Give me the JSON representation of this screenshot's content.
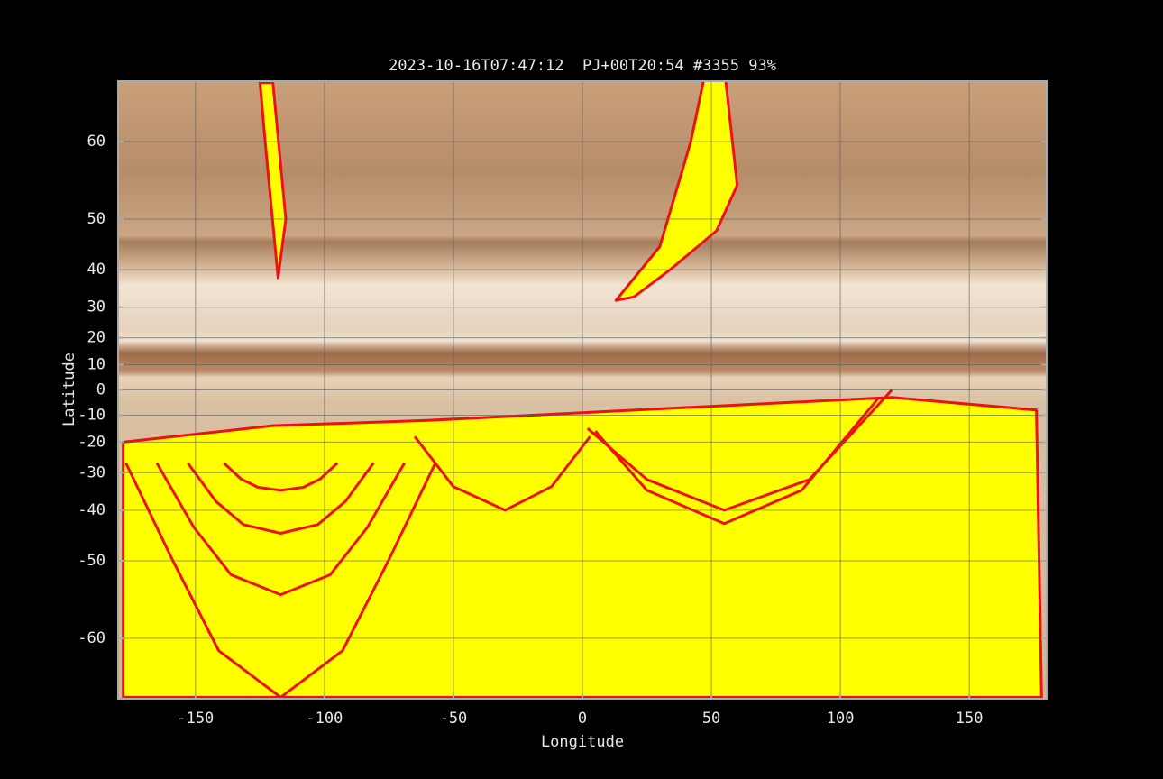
{
  "chart_data": {
    "type": "map",
    "title": "2023-10-16T07:47:12  PJ+00T20:54 #3355 93%",
    "x_label": "Longitude",
    "y_label": "Latitude",
    "xlim": [
      -180,
      180
    ],
    "xticks": [
      -150,
      -100,
      -50,
      0,
      50,
      100,
      150
    ],
    "ylim": [
      -65.1,
      65.1
    ],
    "yticks": [
      -60,
      -50,
      -40,
      -30,
      -20,
      -10,
      0,
      10,
      20,
      30,
      40,
      50,
      60
    ],
    "yscale": "tan",
    "grid": true,
    "fill_color": "#ffff00",
    "stroke_color": "#ee1111",
    "shapes": [
      {
        "filled": true,
        "lon": [
          -178,
          -120,
          -60,
          0,
          60,
          120,
          176,
          178,
          -178
        ],
        "lat": [
          -20,
          -14,
          -12,
          -9,
          -6,
          -3,
          -8,
          -65,
          -65
        ]
      },
      {
        "filled": false,
        "lon": [
          -139,
          -132.4,
          -125.8,
          -117,
          -108.2,
          -101.6,
          -95
        ],
        "lat": [
          -27,
          -31.8,
          -34.2,
          -35,
          -34.2,
          -31.8,
          -27
        ]
      },
      {
        "filled": false,
        "lon": [
          -153,
          -142.2,
          -131.4,
          -117,
          -102.6,
          -91.8,
          -81
        ],
        "lat": [
          -27,
          -37.8,
          -43.2,
          -45,
          -43.2,
          -37.8,
          -27
        ]
      },
      {
        "filled": false,
        "lon": [
          -165,
          -150.6,
          -136.2,
          -117,
          -97.8,
          -83.4,
          -69
        ],
        "lat": [
          -27,
          -43.8,
          -52.2,
          -55,
          -52.2,
          -43.8,
          -27
        ]
      },
      {
        "filled": false,
        "lon": [
          -177,
          -159,
          -141,
          -117,
          -93,
          -75,
          -57
        ],
        "lat": [
          -27,
          -49.8,
          -61.2,
          -65,
          -61.2,
          -49.8,
          -27
        ]
      },
      {
        "filled": false,
        "lon": [
          -65,
          -50,
          -30,
          -12,
          3
        ],
        "lat": [
          -18,
          -34,
          -40,
          -34,
          -18
        ]
      },
      {
        "filled": false,
        "lon": [
          5,
          25,
          55,
          85,
          115
        ],
        "lat": [
          -16,
          -35,
          -43,
          -35,
          -3
        ]
      },
      {
        "filled": false,
        "lon": [
          2,
          25,
          55,
          88,
          120
        ],
        "lat": [
          -15,
          -32,
          -40,
          -32,
          0
        ]
      },
      {
        "filled": true,
        "lon": [
          -125,
          -120,
          -115,
          -118,
          -123
        ],
        "lat": [
          65,
          65,
          50,
          38,
          60
        ]
      },
      {
        "filled": true,
        "lon": [
          13,
          30,
          42,
          48,
          55,
          60,
          52,
          34,
          20
        ],
        "lat": [
          32,
          45,
          60,
          66,
          66,
          55,
          48,
          40,
          33
        ]
      }
    ]
  }
}
